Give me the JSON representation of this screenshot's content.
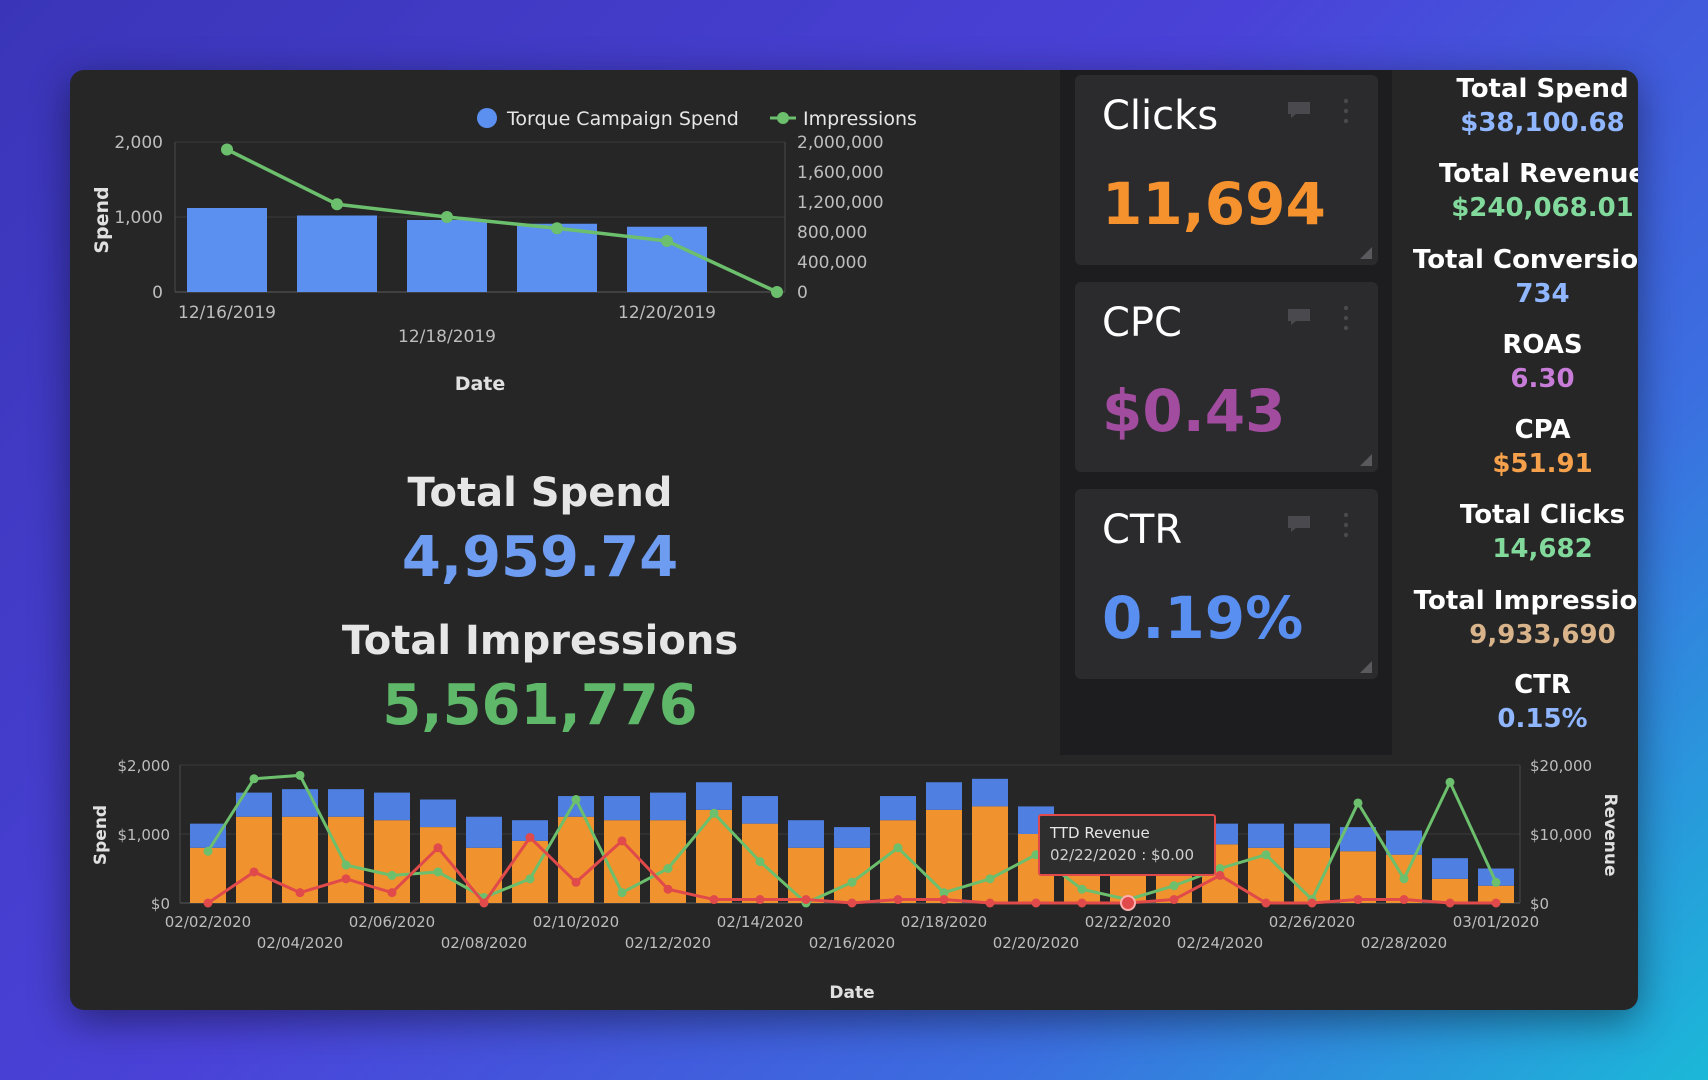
{
  "top_chart": {
    "legend": [
      "Torque Campaign Spend",
      "Impressions"
    ],
    "ylabel_left": "Spend",
    "xlabel": "Date",
    "left_ticks": [
      "2,000",
      "1,000",
      "0"
    ],
    "right_ticks": [
      "2,000,000",
      "1,600,000",
      "1,200,000",
      "800,000",
      "400,000",
      "0"
    ],
    "x_ticks_row1": [
      "12/16/2019",
      "12/20/2019"
    ],
    "x_ticks_row2": [
      "12/18/2019"
    ]
  },
  "summary": {
    "spend_label": "Total Spend",
    "spend_value": "4,959.74",
    "impressions_label": "Total Impressions",
    "impressions_value": "5,561,776"
  },
  "kpis": [
    {
      "title": "Clicks",
      "value": "11,694",
      "color": "#f5922e"
    },
    {
      "title": "CPC",
      "value": "$0.43",
      "color": "#a24c9f"
    },
    {
      "title": "CTR",
      "value": "0.19%",
      "color": "#5a8ff2"
    }
  ],
  "sidebar": [
    {
      "label": "Total Spend",
      "value": "$38,100.68",
      "color": "#8fb6ff"
    },
    {
      "label": "Total Revenue",
      "value": "$240,068.01",
      "color": "#82d99c"
    },
    {
      "label": "Total Conversions",
      "value": "734",
      "color": "#8fb6ff"
    },
    {
      "label": "ROAS",
      "value": "6.30",
      "color": "#c77dd8"
    },
    {
      "label": "CPA",
      "value": "$51.91",
      "color": "#f5a04a"
    },
    {
      "label": "Total Clicks",
      "value": "14,682",
      "color": "#82d99c"
    },
    {
      "label": "Total Impressions",
      "value": "9,933,690",
      "color": "#d9b48a"
    },
    {
      "label": "CTR",
      "value": "0.15%",
      "color": "#8fb6ff"
    }
  ],
  "bottom_chart": {
    "ylabel_left": "Spend",
    "ylabel_right": "Revenue",
    "xlabel": "Date",
    "left_ticks": [
      "$2,000",
      "$1,000",
      "$0"
    ],
    "right_ticks": [
      "$20,000",
      "$10,000",
      "$0"
    ],
    "x_ticks_row1": [
      "02/02/2020",
      "02/06/2020",
      "02/10/2020",
      "02/14/2020",
      "02/18/2020",
      "02/22/2020",
      "02/26/2020",
      "03/01/2020"
    ],
    "x_ticks_row2": [
      "02/04/2020",
      "02/08/2020",
      "02/12/2020",
      "02/16/2020",
      "02/20/2020",
      "02/24/2020",
      "02/28/2020"
    ],
    "tooltip_title": "TTD Revenue",
    "tooltip_text": "02/22/2020 : $0.00"
  },
  "chart_data": [
    {
      "type": "bar",
      "xlabel": "Date",
      "ylabel": "Spend",
      "y2label": "",
      "categories": [
        "12/16/2019",
        "12/17/2019",
        "12/18/2019",
        "12/19/2019",
        "12/20/2019",
        "12/21/2019"
      ],
      "ylim": [
        0,
        2000
      ],
      "y2lim": [
        0,
        2000000
      ],
      "legend_position": "top",
      "series": [
        {
          "name": "Torque Campaign Spend",
          "type": "bar",
          "axis": "left",
          "color": "#5b8ff0",
          "values": [
            1120,
            1020,
            960,
            910,
            870,
            null
          ]
        },
        {
          "name": "Impressions",
          "type": "line",
          "axis": "right",
          "color": "#6cbf6c",
          "values": [
            1900000,
            1170000,
            1000000,
            850000,
            680000,
            0
          ]
        }
      ]
    },
    {
      "type": "bar",
      "xlabel": "Date",
      "ylabel": "Spend",
      "y2label": "Revenue",
      "categories": [
        "02/02/2020",
        "02/03/2020",
        "02/04/2020",
        "02/05/2020",
        "02/06/2020",
        "02/07/2020",
        "02/08/2020",
        "02/09/2020",
        "02/10/2020",
        "02/11/2020",
        "02/12/2020",
        "02/13/2020",
        "02/14/2020",
        "02/15/2020",
        "02/16/2020",
        "02/17/2020",
        "02/18/2020",
        "02/19/2020",
        "02/20/2020",
        "02/21/2020",
        "02/22/2020",
        "02/23/2020",
        "02/24/2020",
        "02/25/2020",
        "02/26/2020",
        "02/27/2020",
        "02/28/2020",
        "02/29/2020",
        "03/01/2020"
      ],
      "ylim": [
        0,
        2000
      ],
      "y2lim": [
        0,
        20000
      ],
      "stacked": true,
      "series": [
        {
          "name": "",
          "type": "bar",
          "axis": "left",
          "color": "#f0922e",
          "values": [
            800,
            1250,
            1250,
            1250,
            1200,
            1100,
            800,
            900,
            1250,
            1200,
            1200,
            1350,
            1150,
            800,
            800,
            1200,
            1350,
            1400,
            1000,
            800,
            500,
            700,
            850,
            800,
            800,
            750,
            700,
            350,
            250
          ]
        },
        {
          "name": "",
          "type": "bar",
          "axis": "left",
          "color": "#4f7fe0",
          "values": [
            350,
            350,
            400,
            400,
            400,
            400,
            450,
            300,
            300,
            350,
            400,
            400,
            400,
            400,
            300,
            350,
            400,
            400,
            400,
            400,
            400,
            400,
            300,
            350,
            350,
            350,
            350,
            300,
            250
          ]
        },
        {
          "name": "",
          "type": "line",
          "axis": "right",
          "color": "#6cbf6c",
          "values": [
            7500,
            18000,
            18500,
            5500,
            4000,
            4500,
            800,
            3500,
            15000,
            1500,
            5000,
            13000,
            6000,
            0,
            3000,
            8000,
            1500,
            3500,
            7000,
            2000,
            500,
            2500,
            5000,
            7000,
            500,
            14500,
            3500,
            17500,
            3000
          ]
        },
        {
          "name": "TTD Revenue",
          "type": "line",
          "axis": "right",
          "color": "#e04a4a",
          "values": [
            0,
            4500,
            1500,
            3500,
            1500,
            8000,
            0,
            9500,
            3000,
            9000,
            2000,
            500,
            500,
            500,
            0,
            500,
            500,
            0,
            0,
            0,
            0,
            500,
            4000,
            0,
            0,
            500,
            500,
            0,
            0
          ]
        }
      ]
    }
  ]
}
